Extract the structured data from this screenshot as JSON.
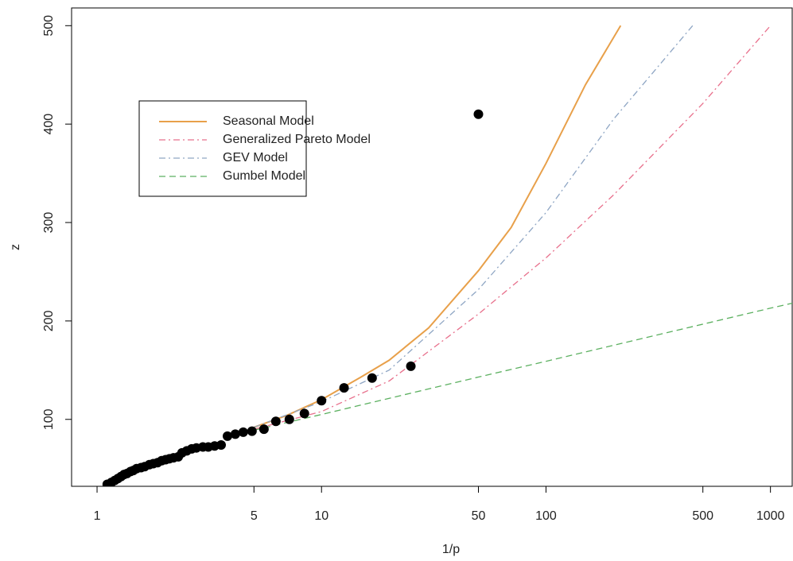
{
  "chart_data": {
    "type": "scatter",
    "xlabel": "1/p",
    "ylabel": "z",
    "xscale": "log",
    "xlim": [
      0.77,
      1250
    ],
    "ylim": [
      32,
      518
    ],
    "xticks": [
      1,
      5,
      10,
      50,
      100,
      500,
      1000
    ],
    "yticks": [
      100,
      200,
      300,
      400,
      500
    ],
    "legend_position": "upper left",
    "points": {
      "color": "#000000",
      "x": [
        1.11,
        1.16,
        1.2,
        1.24,
        1.28,
        1.32,
        1.36,
        1.41,
        1.45,
        1.5,
        1.57,
        1.63,
        1.71,
        1.78,
        1.86,
        1.94,
        2.02,
        2.1,
        2.19,
        2.3,
        2.39,
        2.51,
        2.64,
        2.77,
        2.96,
        3.13,
        3.34,
        3.57,
        3.81,
        4.13,
        4.48,
        4.9,
        5.54,
        6.26,
        7.19,
        8.39,
        10.0,
        12.6,
        16.8,
        25.0,
        50.0
      ],
      "y": [
        34,
        36,
        38,
        40,
        42,
        44,
        45,
        47,
        48,
        50,
        51,
        52,
        54,
        55,
        56,
        58,
        59,
        60,
        61,
        62,
        66,
        68,
        70,
        71,
        72,
        72,
        73,
        74,
        83,
        85,
        87,
        88,
        90,
        98,
        100,
        106,
        119,
        132,
        142,
        154,
        410
      ]
    },
    "series": [
      {
        "name": "Seasonal Model",
        "color": "#e8a04a",
        "linestyle": "solid",
        "x": [
          5,
          7,
          10,
          15,
          20,
          30,
          50,
          70,
          100,
          150,
          215
        ],
        "values": [
          92,
          104,
          120,
          143,
          160,
          193,
          251,
          295,
          360,
          440,
          500
        ]
      },
      {
        "name": "Generalized Pareto Model",
        "color": "#e8708c",
        "linestyle": "dashdot",
        "x": [
          5,
          10,
          20,
          50,
          100,
          200,
          500,
          1000
        ],
        "values": [
          90,
          108,
          139,
          207,
          264,
          328,
          421,
          500
        ]
      },
      {
        "name": "GEV Model",
        "color": "#8fa6c4",
        "linestyle": "dashdot",
        "x": [
          5,
          10,
          20,
          50,
          100,
          200,
          450
        ],
        "values": [
          92,
          118,
          150,
          232,
          310,
          405,
          500
        ]
      },
      {
        "name": "Gumbel Model",
        "color": "#5cb060",
        "linestyle": "dashed",
        "x": [
          5,
          10,
          50,
          100,
          1000,
          1250
        ],
        "values": [
          89,
          105,
          143,
          159,
          213,
          218
        ]
      }
    ]
  }
}
